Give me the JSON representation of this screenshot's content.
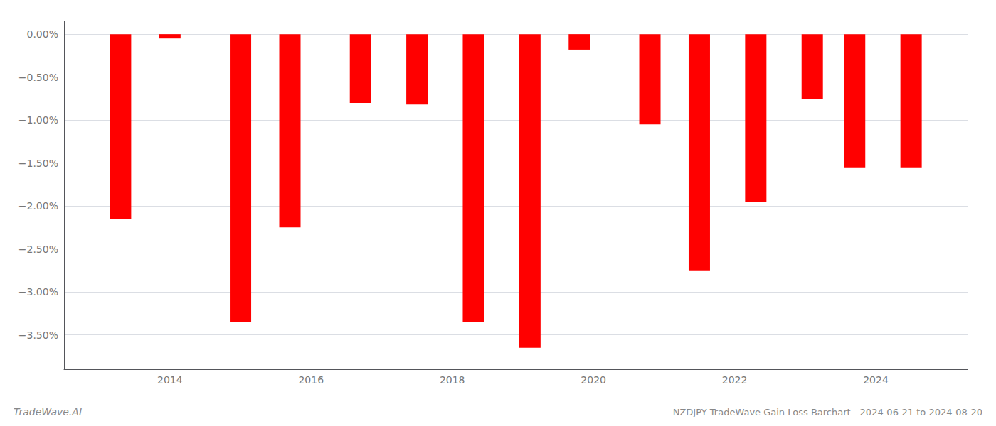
{
  "chart_data": {
    "type": "bar",
    "title": "NZDJPY TradeWave Gain Loss Barchart - 2024-06-21 to 2024-08-20",
    "annotations": [
      "TradeWave.AI"
    ],
    "x": [
      2013.3,
      2014.0,
      2015.0,
      2015.7,
      2016.7,
      2017.5,
      2018.3,
      2019.1,
      2019.8,
      2020.8,
      2021.5,
      2022.3,
      2023.1,
      2023.7,
      2024.5
    ],
    "values": [
      -2.15,
      -0.05,
      -3.35,
      -2.25,
      -0.8,
      -0.82,
      -3.35,
      -3.65,
      -0.18,
      -1.05,
      -2.75,
      -1.95,
      -0.75,
      -1.55,
      -1.55
    ],
    "color": "#ff0000",
    "xlim": [
      2012.5,
      2025.3
    ],
    "xticks": [
      2014,
      2016,
      2018,
      2020,
      2022,
      2024
    ],
    "ylim": [
      -3.9,
      0.15
    ],
    "yticks": [
      {
        "value": 0.0,
        "label": "0.00%"
      },
      {
        "value": -0.5,
        "label": "−0.50%"
      },
      {
        "value": -1.0,
        "label": "−1.00%"
      },
      {
        "value": -1.5,
        "label": "−1.50%"
      },
      {
        "value": -2.0,
        "label": "−2.00%"
      },
      {
        "value": -2.5,
        "label": "−2.50%"
      },
      {
        "value": -3.0,
        "label": "−3.00%"
      },
      {
        "value": -3.5,
        "label": "−3.50%"
      }
    ],
    "grid": true
  }
}
